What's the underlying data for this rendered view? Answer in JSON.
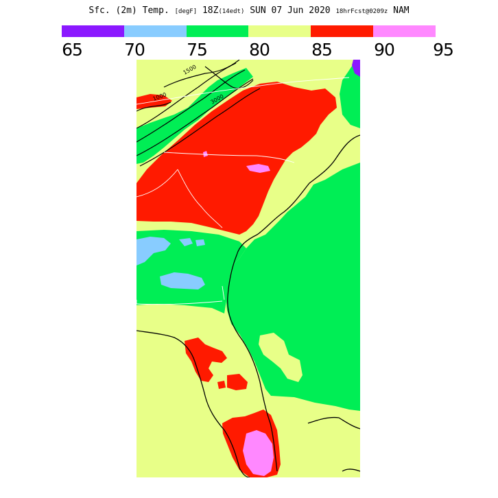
{
  "header": {
    "variable": "Sfc. (2m) Temp.",
    "units": "[degF]",
    "valid_time": "18Z",
    "local_time": "(14edt)",
    "date": "SUN 07 Jun 2020",
    "forecast": "18hrFcst@0209z",
    "model": "NAM"
  },
  "legend": {
    "ticks": [
      "65",
      "70",
      "75",
      "80",
      "85",
      "90",
      "95"
    ],
    "colors": [
      "#8b18ff",
      "#88ccff",
      "#00ee55",
      "#e8ff88",
      "#ff1a00",
      "#ff88ff"
    ]
  },
  "map": {
    "fill_colors": {
      "band_70_75": "#88ccff",
      "band_75_80": "#00ee55",
      "band_80_85": "#e8ff88",
      "band_85_90": "#ff1a00",
      "band_90_95": "#ff88ff",
      "band_65_70": "#8b18ff"
    },
    "contour_labels": [
      "1500",
      "3000",
      "1000"
    ]
  }
}
